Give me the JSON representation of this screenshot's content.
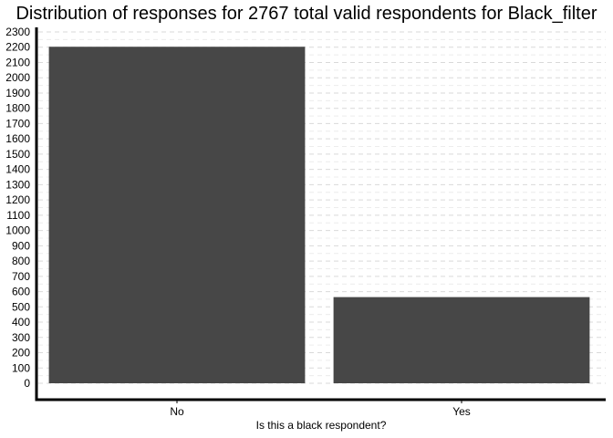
{
  "chart_data": {
    "type": "bar",
    "title": "Distribution of responses for 2767 total valid respondents for Black_filter",
    "xlabel": "Is this a black respondent?",
    "ylabel": "",
    "categories": [
      "No",
      "Yes"
    ],
    "values": [
      2203,
      564
    ],
    "ylim": [
      0,
      2300
    ],
    "ytick_step": 100,
    "bar_color": "#474747",
    "grid": "horizontal dashed",
    "legend": "none"
  }
}
